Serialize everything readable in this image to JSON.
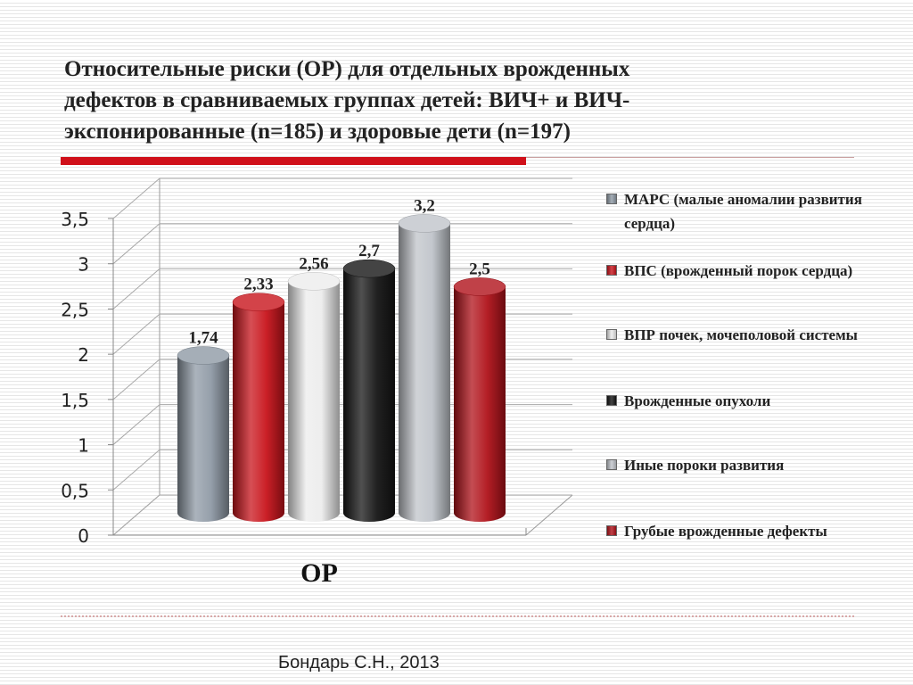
{
  "title": "Относительные риски (ОР)  для отдельных врожденных\nдефектов в сравниваемых группах детей: ВИЧ+ и ВИЧ-\nэкспонированные (n=185) и здоровые дети (n=197)",
  "source": "Бондарь С.Н., 2013",
  "chart_data": {
    "type": "bar",
    "xlabel": "ОР",
    "ylim": [
      0,
      3.5
    ],
    "yticks": [
      "0",
      "0,5",
      "1",
      "1,5",
      "2",
      "2,5",
      "3",
      "3,5"
    ],
    "grid": true,
    "legend_position": "right",
    "series": [
      {
        "name": "МАРС (малые аномалии развития сердца)",
        "value": 1.74,
        "label": "1,74",
        "color": "#8f9aa5"
      },
      {
        "name": "ВПС (врожденный порок сердца)",
        "value": 2.33,
        "label": "2,33",
        "color": "#c8141c"
      },
      {
        "name": "ВПР почек, мочеполовой системы",
        "value": 2.56,
        "label": "2,56",
        "color": "#ececec"
      },
      {
        "name": "Врожденные опухоли",
        "value": 2.7,
        "label": "2,7",
        "color": "#151515"
      },
      {
        "name": "Иные пороки развития",
        "value": 3.2,
        "label": "3,2",
        "color": "#c0c4ca"
      },
      {
        "name": "Грубые врожденные дефекты",
        "value": 2.5,
        "label": "2,5",
        "color": "#b0121a"
      }
    ]
  }
}
